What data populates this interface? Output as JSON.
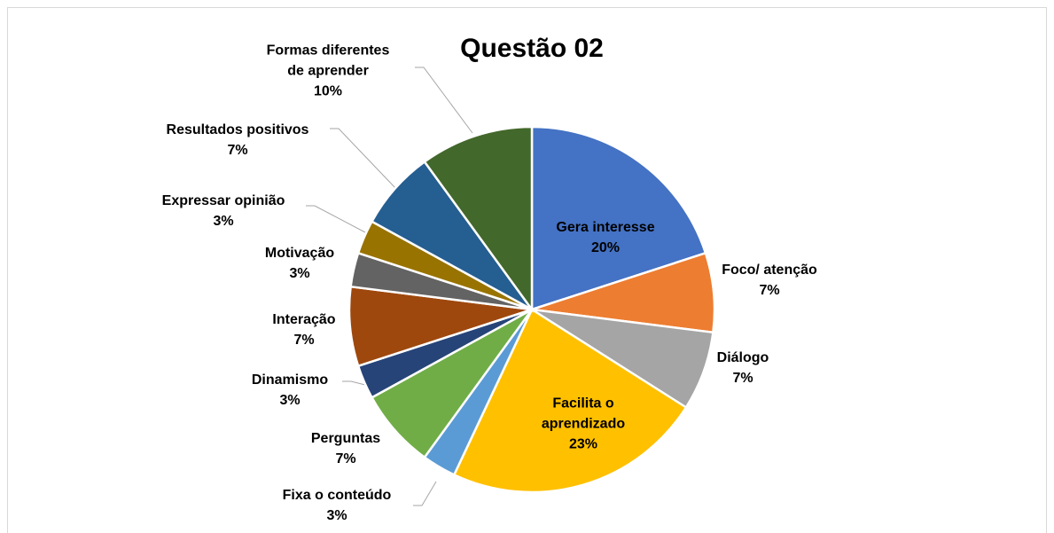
{
  "chart_data": {
    "type": "pie",
    "title": "Questão 02",
    "categories": [
      "Gera interesse",
      "Foco/ atenção",
      "Diálogo",
      "Facilita o aprendizado",
      "Fixa o conteúdo",
      "Perguntas",
      "Dinamismo",
      "Interação",
      "Motivação",
      "Expressar opinião",
      "Resultados positivos",
      "Formas diferentes de aprender"
    ],
    "values": [
      20,
      7,
      7,
      23,
      3,
      7,
      3,
      7,
      3,
      3,
      7,
      10
    ],
    "value_labels": [
      "20%",
      "7%",
      "7%",
      "23%",
      "3%",
      "7%",
      "3%",
      "7%",
      "3%",
      "3%",
      "7%",
      "10%"
    ],
    "colors": [
      "#4472c4",
      "#ed7d31",
      "#a5a5a5",
      "#ffc000",
      "#5b9bd5",
      "#70ad47",
      "#264478",
      "#9e480e",
      "#636363",
      "#997300",
      "#255e91",
      "#43682b"
    ]
  }
}
